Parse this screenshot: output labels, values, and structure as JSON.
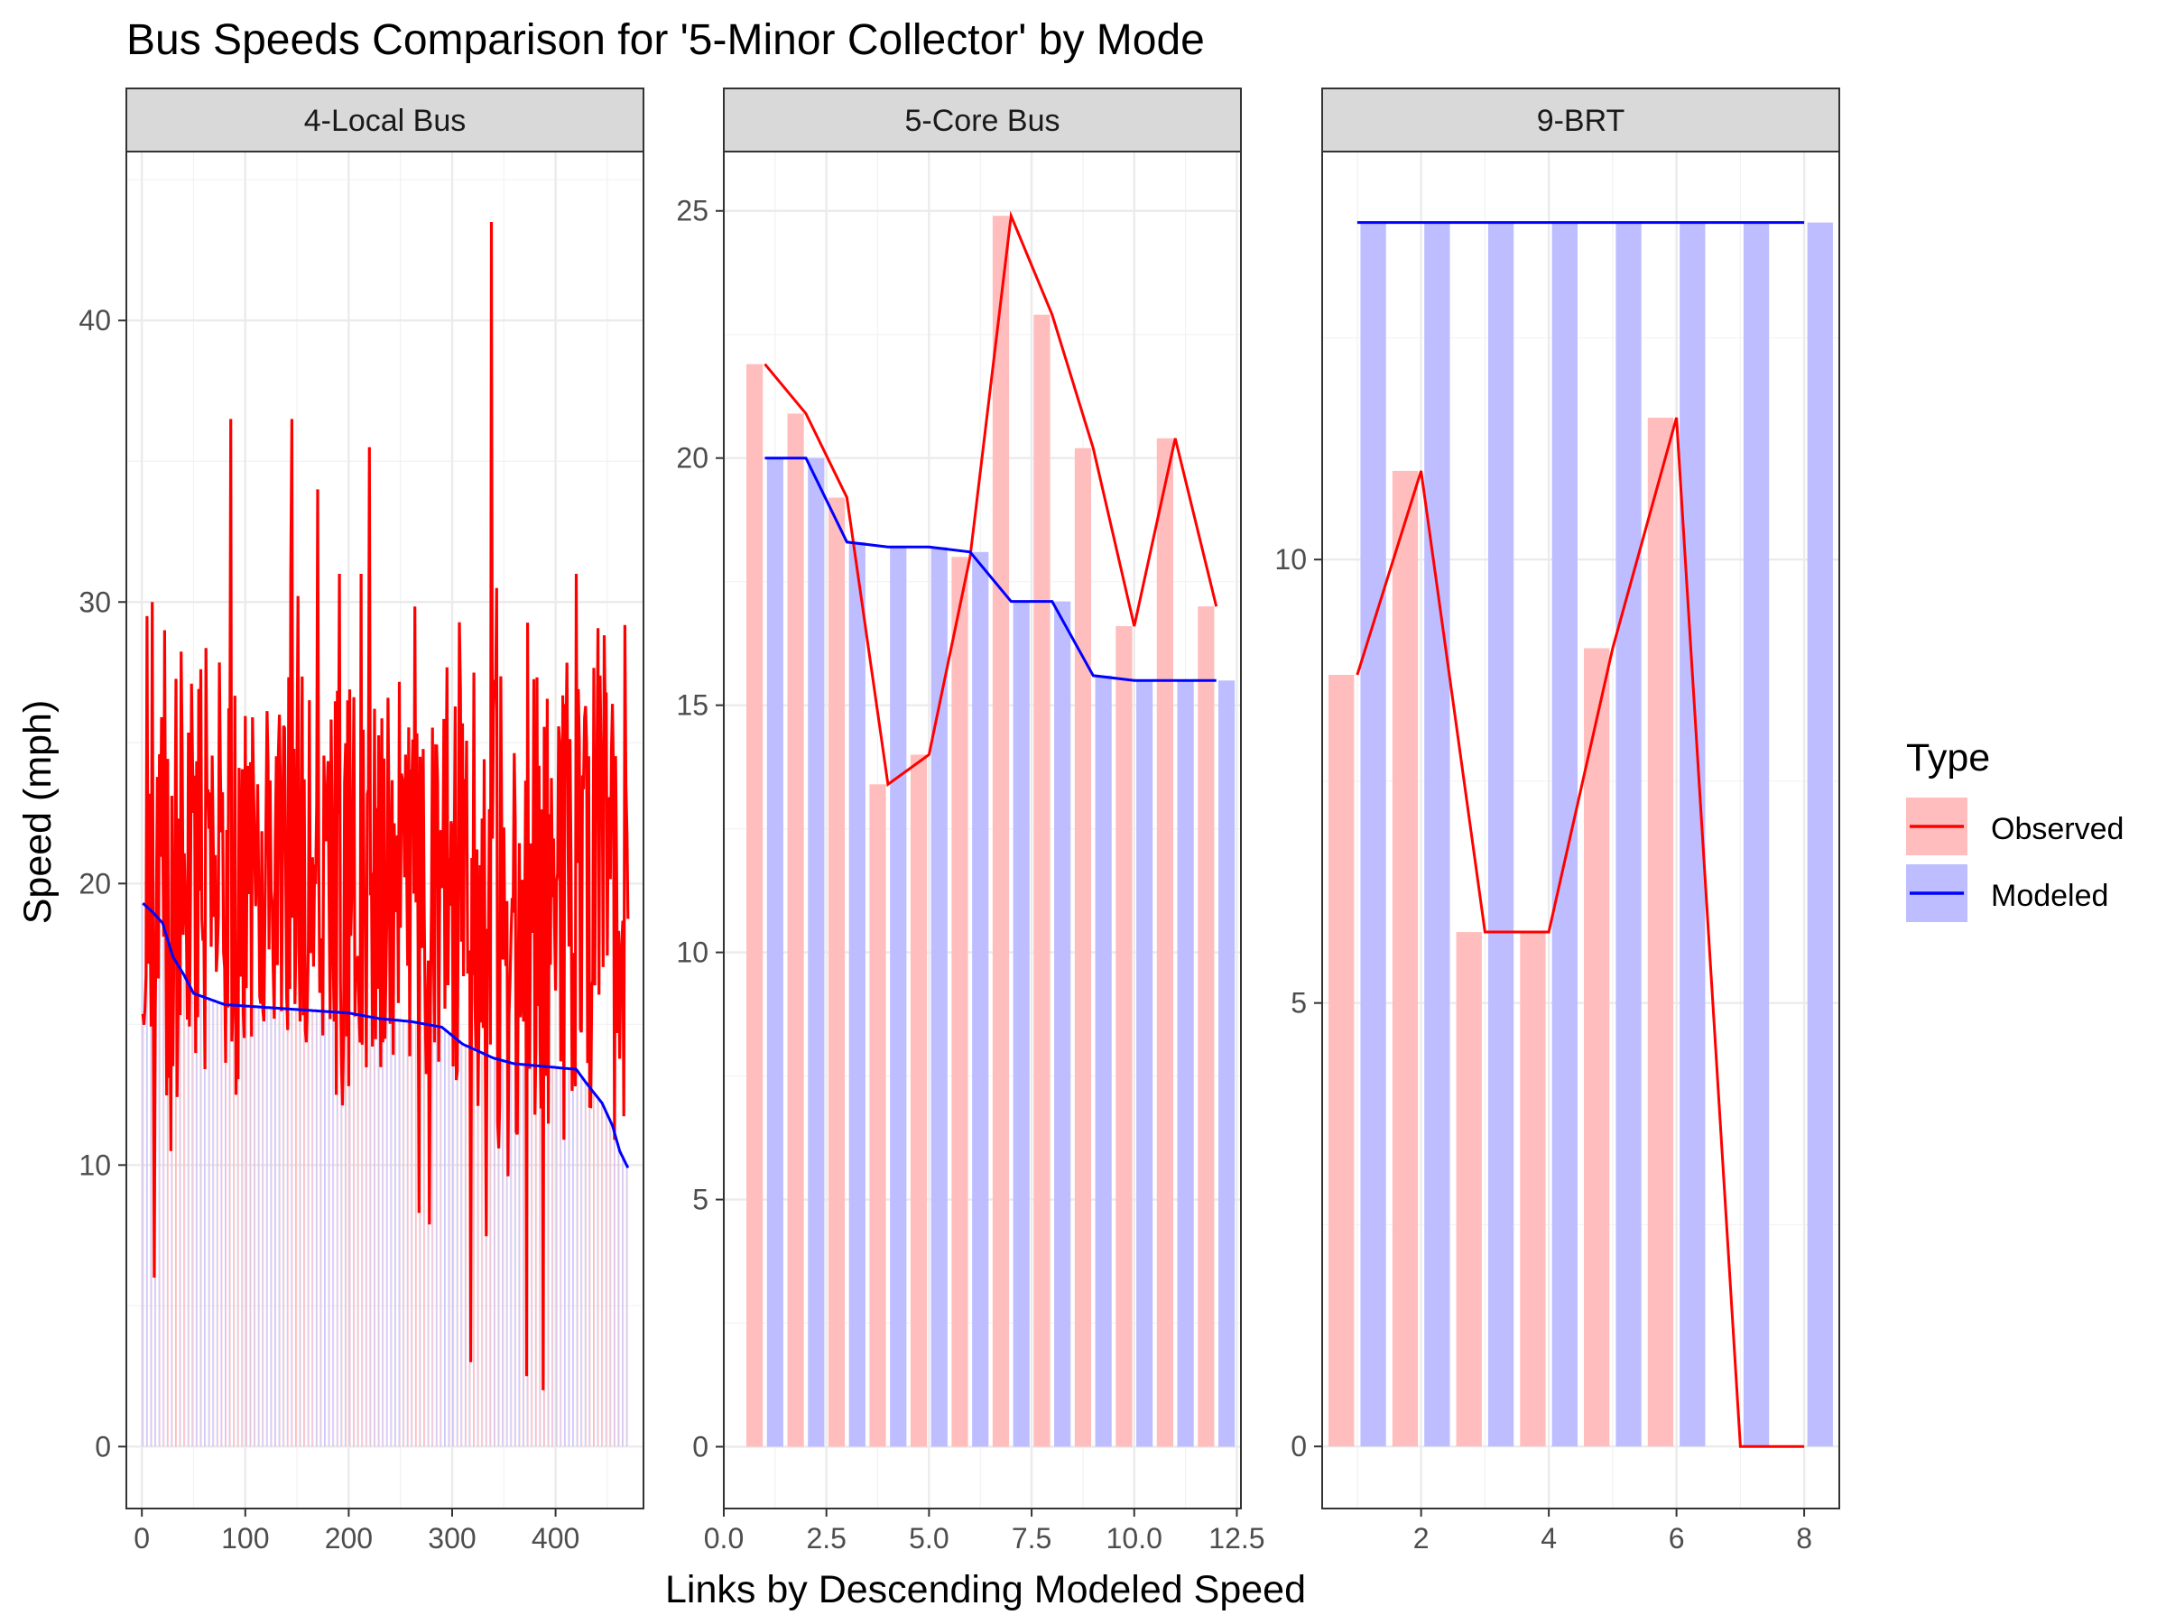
{
  "title": "Bus Speeds Comparison for '5-Minor Collector' by Mode",
  "xlabel": "Links by Descending Modeled Speed",
  "ylabel": "Speed (mph)",
  "legend": {
    "title": "Type",
    "entries": [
      {
        "label": "Observed",
        "line_color": "#ff0000",
        "fill_color": "#ffbdbd"
      },
      {
        "label": "Modeled",
        "line_color": "#0000ff",
        "fill_color": "#bdbdff"
      }
    ]
  },
  "chart_data": [
    {
      "type": "bar+line",
      "panel": "4-Local Bus",
      "xlim": [
        -15,
        485
      ],
      "ylim": [
        -2.2,
        46
      ],
      "xticks": [
        0,
        100,
        200,
        300,
        400
      ],
      "xtick_labels": [
        "0",
        "100",
        "200",
        "300",
        "400"
      ],
      "yticks": [
        0,
        10,
        20,
        30,
        40
      ],
      "ytick_labels": [
        "0",
        "10",
        "20",
        "30",
        "40"
      ],
      "modeled_profile": [
        [
          1,
          19.3
        ],
        [
          10,
          19
        ],
        [
          20,
          18.6
        ],
        [
          30,
          17.4
        ],
        [
          40,
          16.8
        ],
        [
          50,
          16.1
        ],
        [
          80,
          15.7
        ],
        [
          120,
          15.6
        ],
        [
          200,
          15.4
        ],
        [
          230,
          15.2
        ],
        [
          260,
          15.1
        ],
        [
          290,
          14.9
        ],
        [
          310,
          14.3
        ],
        [
          340,
          13.8
        ],
        [
          360,
          13.6
        ],
        [
          390,
          13.5
        ],
        [
          420,
          13.4
        ],
        [
          430,
          12.9
        ],
        [
          445,
          12.2
        ],
        [
          455,
          11.4
        ],
        [
          462,
          10.5
        ],
        [
          470,
          9.9
        ]
      ],
      "observed_range": [
        2,
        43.5
      ],
      "observed_mean": 20,
      "observed_peaks": [
        [
          5,
          29.5
        ],
        [
          10,
          30
        ],
        [
          22,
          29
        ],
        [
          28,
          10.5
        ],
        [
          86,
          36.5
        ],
        [
          145,
          36.5
        ],
        [
          170,
          34
        ],
        [
          220,
          35.5
        ],
        [
          268,
          8.3
        ],
        [
          318,
          3
        ],
        [
          338,
          43.5
        ],
        [
          372,
          2.5
        ],
        [
          388,
          2
        ],
        [
          410,
          25
        ],
        [
          420,
          31
        ]
      ],
      "n_links": 470
    },
    {
      "type": "bar+line",
      "panel": "5-Core Bus",
      "xlim": [
        0,
        12.6
      ],
      "ylim": [
        -1.25,
        26.2
      ],
      "xticks": [
        0,
        2.5,
        5,
        7.5,
        10,
        12.5
      ],
      "xtick_labels": [
        "0.0",
        "2.5",
        "5.0",
        "7.5",
        "10.0",
        "12.5"
      ],
      "yticks": [
        0,
        5,
        10,
        15,
        20,
        25
      ],
      "ytick_labels": [
        "0",
        "5",
        "10",
        "15",
        "20",
        "25"
      ],
      "x": [
        1,
        2,
        3,
        4,
        5,
        6,
        7,
        8,
        9,
        10,
        11,
        12
      ],
      "observed": [
        21.9,
        20.9,
        19.2,
        13.4,
        14,
        18,
        24.9,
        22.9,
        20.2,
        16.6,
        20.4,
        17
      ],
      "modeled": [
        20,
        20,
        18.3,
        18.2,
        18.2,
        18.1,
        17.1,
        17.1,
        15.6,
        15.5,
        15.5,
        15.5
      ]
    },
    {
      "type": "bar+line",
      "panel": "9-BRT",
      "xlim": [
        0.45,
        8.55
      ],
      "ylim": [
        -0.7,
        14.6
      ],
      "xticks": [
        2,
        4,
        6,
        8
      ],
      "xtick_labels": [
        "2",
        "4",
        "6",
        "8"
      ],
      "yticks": [
        0,
        5,
        10
      ],
      "ytick_labels": [
        "0",
        "5",
        "10"
      ],
      "x": [
        1,
        2,
        3,
        4,
        5,
        6,
        7,
        8
      ],
      "observed": [
        8.7,
        11,
        5.8,
        5.8,
        9,
        11.6,
        0,
        0
      ],
      "modeled": [
        13.8,
        13.8,
        13.8,
        13.8,
        13.8,
        13.8,
        13.8,
        13.8
      ]
    }
  ]
}
